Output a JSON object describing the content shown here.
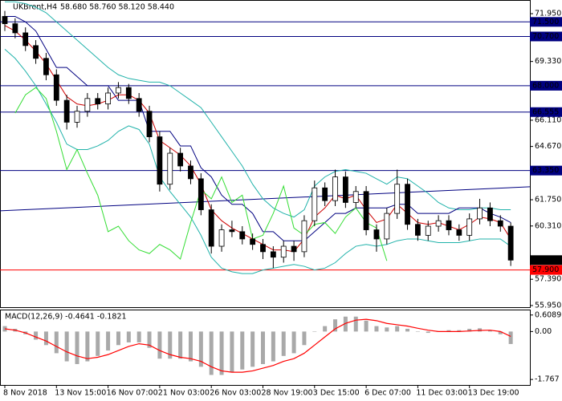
{
  "chart_data": [
    {
      "type": "candlestick",
      "title": "UKBrent,H4",
      "subtitle": "58.680 58.760 58.120 58.440",
      "color": "#000000",
      "categories": [
        "8 Nov 2018",
        null,
        null,
        null,
        null,
        "13 Nov 15:00",
        null,
        null,
        null,
        null,
        "16 Nov 07:00",
        null,
        null,
        null,
        null,
        "21 Nov 03:00",
        null,
        null,
        null,
        null,
        "26 Nov 03:00",
        null,
        null,
        null,
        null,
        "28 Nov 19:00",
        null,
        null,
        null,
        null,
        "3 Dec 15:00",
        null,
        null,
        null,
        null,
        "6 Dec 07:00",
        null,
        null,
        null,
        null,
        "11 Dec 03:00",
        null,
        null,
        null,
        null,
        "13 Dec 19:00",
        null,
        null,
        null,
        null
      ],
      "open": [
        71.8,
        71.4,
        70.9,
        70.2,
        69.5,
        68.6,
        67.2,
        66.0,
        66.6,
        67.3,
        67.0,
        67.6,
        67.9,
        67.3,
        66.6,
        65.2,
        62.6,
        64.3,
        63.6,
        62.9,
        61.2,
        59.2,
        60.1,
        60.0,
        59.6,
        59.3,
        58.9,
        58.6,
        59.2,
        58.9,
        60.6,
        62.4,
        61.7,
        63.0,
        61.6,
        62.2,
        60.1,
        59.6,
        61.0,
        62.6,
        60.4,
        59.8,
        60.3,
        60.6,
        60.1,
        59.8,
        60.7,
        61.3,
        60.6,
        60.3
      ],
      "high": [
        72.1,
        71.7,
        71.2,
        70.5,
        69.8,
        68.9,
        67.5,
        66.9,
        67.6,
        67.6,
        67.9,
        68.2,
        68.1,
        67.6,
        66.9,
        65.5,
        64.6,
        64.6,
        63.9,
        63.2,
        61.5,
        60.4,
        60.6,
        60.3,
        59.9,
        59.6,
        59.2,
        59.5,
        59.5,
        60.9,
        62.8,
        62.7,
        63.4,
        63.3,
        62.5,
        62.5,
        60.4,
        61.3,
        63.4,
        62.9,
        60.7,
        60.6,
        60.9,
        60.9,
        60.4,
        61.0,
        61.8,
        61.6,
        60.9,
        60.5
      ],
      "low": [
        71.0,
        70.6,
        69.9,
        69.2,
        68.3,
        66.9,
        65.6,
        65.7,
        66.3,
        66.7,
        66.7,
        67.3,
        67.0,
        66.3,
        64.9,
        62.2,
        62.3,
        63.3,
        62.6,
        60.9,
        58.8,
        58.9,
        59.7,
        59.3,
        59.0,
        58.5,
        58.0,
        58.3,
        58.4,
        58.6,
        60.3,
        61.4,
        61.4,
        61.3,
        61.3,
        59.8,
        58.9,
        59.3,
        60.7,
        60.1,
        59.5,
        59.5,
        60.0,
        59.8,
        59.5,
        59.5,
        60.4,
        60.3,
        60.0,
        58.12
      ],
      "close": [
        71.4,
        70.9,
        70.2,
        69.5,
        68.6,
        67.2,
        66.0,
        66.6,
        67.3,
        67.0,
        67.6,
        67.9,
        67.3,
        66.6,
        65.2,
        62.6,
        64.3,
        63.6,
        62.9,
        61.2,
        59.2,
        60.1,
        60.0,
        59.6,
        59.3,
        58.9,
        58.6,
        59.2,
        58.9,
        60.6,
        62.4,
        61.7,
        63.0,
        61.6,
        62.2,
        60.1,
        59.6,
        61.0,
        62.6,
        60.4,
        59.8,
        60.3,
        60.6,
        60.1,
        59.8,
        60.7,
        61.3,
        60.6,
        60.3,
        58.44
      ],
      "series": [
        {
          "color": "#20b2aa",
          "values": [
            72.6,
            72.6,
            72.5,
            72.3,
            72.0,
            71.5,
            71.0,
            70.5,
            70.0,
            69.5,
            69.0,
            68.6,
            68.4,
            68.3,
            68.2,
            68.2,
            68.0,
            67.6,
            67.2,
            66.8,
            66.0,
            65.2,
            64.4,
            63.6,
            62.6,
            61.8,
            61.3,
            61.0,
            60.8,
            61.2,
            62.5,
            63.0,
            63.3,
            63.4,
            63.3,
            63.2,
            62.9,
            62.6,
            63.0,
            62.9,
            62.5,
            62.1,
            61.6,
            61.3,
            61.2,
            61.2,
            61.3,
            61.3,
            61.2,
            61.2
          ]
        },
        {
          "color": "#20b2aa",
          "values": [
            70.0,
            69.5,
            68.8,
            68.0,
            67.0,
            66.0,
            64.8,
            64.5,
            64.5,
            64.7,
            65.0,
            65.5,
            65.8,
            65.6,
            64.8,
            63.0,
            62.2,
            61.5,
            60.8,
            59.8,
            58.6,
            58.0,
            57.8,
            57.7,
            57.7,
            57.9,
            58.0,
            58.1,
            58.2,
            58.1,
            57.9,
            58.0,
            58.3,
            58.8,
            59.2,
            59.3,
            59.2,
            59.3,
            59.5,
            59.6,
            59.6,
            59.5,
            59.4,
            59.4,
            59.4,
            59.5,
            59.6,
            59.6,
            59.6,
            59.2
          ]
        },
        {
          "color": "#000080",
          "values": [
            71.8,
            71.8,
            71.5,
            71.0,
            70.0,
            69.0,
            69.0,
            68.5,
            68.0,
            68.0,
            68.0,
            67.2,
            67.2,
            67.2,
            65.5,
            65.5,
            65.5,
            64.7,
            64.7,
            63.5,
            63.0,
            62.0,
            61.5,
            61.5,
            61.0,
            60.0,
            60.0,
            59.5,
            59.5,
            59.5,
            60.0,
            60.5,
            61.0,
            61.0,
            61.3,
            61.3,
            61.3,
            61.3,
            61.5,
            61.5,
            61.0,
            61.0,
            61.0,
            61.0,
            61.3,
            61.3,
            61.3,
            61.0,
            60.8,
            60.5
          ]
        },
        {
          "color": "#cc0000",
          "values": [
            71.3,
            71.0,
            70.5,
            69.9,
            69.2,
            68.3,
            67.4,
            67.0,
            66.9,
            67.0,
            67.2,
            67.5,
            67.5,
            67.2,
            66.5,
            65.0,
            64.6,
            64.2,
            63.6,
            62.6,
            61.2,
            60.6,
            60.2,
            59.9,
            59.6,
            59.3,
            59.0,
            59.0,
            58.9,
            59.6,
            60.8,
            61.3,
            62.0,
            61.8,
            62.0,
            61.2,
            60.5,
            60.7,
            61.5,
            61.0,
            60.5,
            60.4,
            60.5,
            60.3,
            60.1,
            60.4,
            60.8,
            60.7,
            60.5,
            59.6
          ]
        },
        {
          "color": "#33dd33",
          "values": [
            null,
            66.5,
            67.5,
            67.9,
            67.3,
            65.5,
            63.4,
            64.5,
            63.2,
            62.0,
            60.0,
            60.3,
            59.5,
            59.0,
            58.8,
            59.3,
            59.0,
            58.5,
            60.5,
            62.3,
            61.8,
            63.0,
            61.6,
            62.0,
            59.6,
            59.8,
            61.0,
            62.5,
            60.2,
            59.8,
            60.4,
            60.5,
            59.9,
            60.8,
            61.3,
            60.5,
            60.2,
            58.4,
            null,
            null,
            null,
            null,
            null,
            null,
            null,
            null,
            null,
            null,
            null,
            null
          ]
        }
      ],
      "trendline": {
        "color": "#000080",
        "values": [
          61.14,
          62.46
        ]
      },
      "levels": [
        {
          "value": 71.5,
          "label": "71.500",
          "color": "#000080"
        },
        {
          "value": 70.7,
          "label": "70.700",
          "color": "#000080"
        },
        {
          "value": 68.0,
          "label": "68.000",
          "color": "#000080"
        },
        {
          "value": 66.555,
          "label": "66.555",
          "color": "#000080"
        },
        {
          "value": 63.35,
          "label": "63.350",
          "color": "#000080"
        },
        {
          "value": 57.9,
          "label": "57.900",
          "color": "#ff0000"
        }
      ],
      "current_price": {
        "value": 58.44,
        "label": "58.440"
      },
      "ylim": [
        55.86,
        72.7
      ],
      "yticks": [
        {
          "value": 71.95,
          "label": "71.950"
        },
        {
          "value": 69.33,
          "label": "69.330"
        },
        {
          "value": 66.11,
          "label": "66.110"
        },
        {
          "value": 64.67,
          "label": "64.670"
        },
        {
          "value": 61.75,
          "label": "61.750"
        },
        {
          "value": 60.31,
          "label": "60.310"
        },
        {
          "value": 57.39,
          "label": "57.390"
        },
        {
          "value": 55.95,
          "label": "55.950"
        }
      ]
    },
    {
      "type": "bar",
      "title": "MACD(12,26,9) -0.4641 -0.1821",
      "color": "#a9a9a9",
      "values": [
        0.2,
        0.1,
        -0.1,
        -0.3,
        -0.5,
        -0.8,
        -1.1,
        -1.2,
        -1.1,
        -0.9,
        -0.7,
        -0.5,
        -0.4,
        -0.4,
        -0.6,
        -1.0,
        -1.0,
        -1.0,
        -1.1,
        -1.3,
        -1.6,
        -1.6,
        -1.5,
        -1.4,
        -1.3,
        -1.2,
        -1.1,
        -0.9,
        -0.8,
        -0.5,
        0.0,
        0.2,
        0.45,
        0.55,
        0.55,
        0.4,
        0.2,
        0.15,
        0.2,
        0.1,
        0.0,
        -0.05,
        0.0,
        0.05,
        0.05,
        0.1,
        0.12,
        0.05,
        -0.1,
        -0.46
      ],
      "series": [
        {
          "color": "#ff0000",
          "values": [
            0.1,
            0.05,
            -0.05,
            -0.2,
            -0.35,
            -0.55,
            -0.75,
            -0.9,
            -1.0,
            -0.95,
            -0.85,
            -0.7,
            -0.55,
            -0.45,
            -0.5,
            -0.7,
            -0.85,
            -0.95,
            -1.0,
            -1.1,
            -1.3,
            -1.45,
            -1.5,
            -1.5,
            -1.45,
            -1.35,
            -1.25,
            -1.1,
            -1.0,
            -0.8,
            -0.5,
            -0.2,
            0.1,
            0.3,
            0.42,
            0.45,
            0.4,
            0.3,
            0.25,
            0.2,
            0.12,
            0.05,
            0.0,
            0.0,
            0.0,
            0.02,
            0.04,
            0.05,
            0.0,
            -0.18
          ]
        }
      ],
      "ylim": [
        -1.97,
        0.78
      ],
      "yticks": [
        {
          "value": 0.6089,
          "label": "0.6089"
        },
        {
          "value": 0,
          "label": "0.00"
        },
        {
          "value": -1.767,
          "label": "-1.767"
        }
      ]
    }
  ]
}
